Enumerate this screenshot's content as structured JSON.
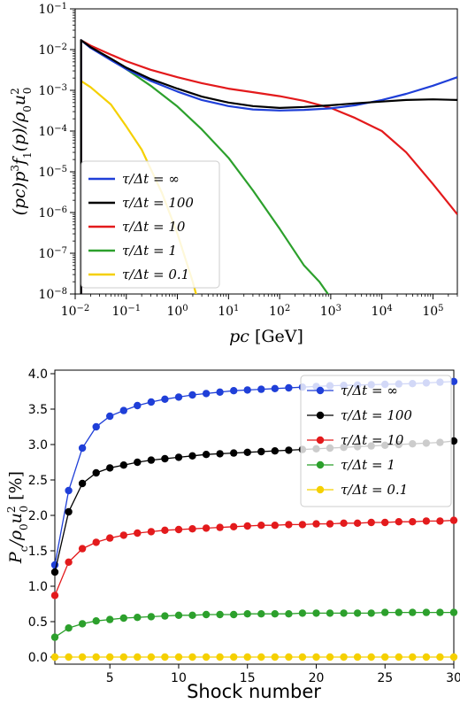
{
  "chart_data": [
    {
      "type": "line",
      "x_scale": "log",
      "y_scale": "log",
      "xlim": [
        0.01,
        300000
      ],
      "ylim": [
        1e-08,
        0.1
      ],
      "xlabel": "pc [GeV]",
      "ylabel": "(pc)p³f₁(p)/ρ₀u₀²",
      "x_ticks": [
        {
          "value": 0.01,
          "base": "10",
          "exp": "−2"
        },
        {
          "value": 0.1,
          "base": "10",
          "exp": "−1"
        },
        {
          "value": 1,
          "base": "10",
          "exp": "0"
        },
        {
          "value": 10,
          "base": "10",
          "exp": "1"
        },
        {
          "value": 100,
          "base": "10",
          "exp": "2"
        },
        {
          "value": 1000,
          "base": "10",
          "exp": "3"
        },
        {
          "value": 10000,
          "base": "10",
          "exp": "4"
        },
        {
          "value": 100000,
          "base": "10",
          "exp": "5"
        }
      ],
      "y_ticks": [
        {
          "value": 0.1,
          "base": "10",
          "exp": "−1"
        },
        {
          "value": 0.01,
          "base": "10",
          "exp": "−2"
        },
        {
          "value": 0.001,
          "base": "10",
          "exp": "−3"
        },
        {
          "value": 0.0001,
          "base": "10",
          "exp": "−4"
        },
        {
          "value": 1e-05,
          "base": "10",
          "exp": "−5"
        },
        {
          "value": 1e-06,
          "base": "10",
          "exp": "−6"
        },
        {
          "value": 1e-07,
          "base": "10",
          "exp": "−7"
        },
        {
          "value": 1e-08,
          "base": "10",
          "exp": "−8"
        }
      ],
      "legend_position": "lower-left",
      "series": [
        {
          "name": "τ/Δt = ∞",
          "color": "#1f3fd8",
          "x": [
            0.013,
            0.02,
            0.05,
            0.1,
            0.3,
            1,
            3,
            10,
            30,
            100,
            300,
            1000,
            3000,
            10000,
            30000,
            100000,
            300000
          ],
          "y": [
            0.017,
            0.011,
            0.0055,
            0.0033,
            0.0017,
            0.00093,
            0.00058,
            0.00041,
            0.00034,
            0.00032,
            0.00033,
            0.00036,
            0.00043,
            0.00058,
            0.00082,
            0.0013,
            0.0021
          ]
        },
        {
          "name": "τ/Δt = 100",
          "color": "#000000",
          "x": [
            0.013,
            0.02,
            0.05,
            0.1,
            0.3,
            1,
            3,
            10,
            30,
            100,
            300,
            1000,
            3000,
            10000,
            30000,
            100000,
            300000
          ],
          "y": [
            0.017,
            0.0115,
            0.006,
            0.0036,
            0.0019,
            0.0011,
            0.0007,
            0.0005,
            0.00041,
            0.00037,
            0.00039,
            0.00043,
            0.00048,
            0.00053,
            0.00058,
            0.0006,
            0.00058
          ]
        },
        {
          "name": "τ/Δt = 10",
          "color": "#e31a1c",
          "x": [
            0.013,
            0.02,
            0.05,
            0.1,
            0.3,
            1,
            3,
            10,
            30,
            100,
            300,
            1000,
            3000,
            10000,
            30000,
            100000,
            300000
          ],
          "y": [
            0.017,
            0.0125,
            0.0075,
            0.0052,
            0.0032,
            0.0021,
            0.0015,
            0.0011,
            0.0009,
            0.00072,
            0.00055,
            0.00037,
            0.00021,
            0.0001,
            3e-05,
            5e-06,
            9e-07
          ]
        },
        {
          "name": "τ/Δt = 1",
          "color": "#2ca02c",
          "x": [
            0.013,
            0.02,
            0.05,
            0.1,
            0.3,
            1,
            3,
            10,
            30,
            100,
            300,
            600,
            1000,
            1200
          ],
          "y": [
            0.017,
            0.0115,
            0.0058,
            0.0033,
            0.0013,
            0.0004,
            0.00011,
            2.2e-05,
            3.5e-06,
            4e-07,
            5e-08,
            2e-08,
            8e-09,
            4e-09
          ]
        },
        {
          "name": "τ/Δt = 0.1",
          "color": "#f5d000",
          "x": [
            0.013,
            0.02,
            0.05,
            0.1,
            0.2,
            0.5,
            1,
            2,
            3
          ],
          "y": [
            0.0017,
            0.0012,
            0.00045,
            0.00013,
            3.5e-05,
            3e-06,
            3e-07,
            2e-08,
            3e-09
          ]
        }
      ]
    },
    {
      "type": "line",
      "xlim": [
        1,
        30
      ],
      "ylim": [
        -0.1,
        4.05
      ],
      "xlabel": "Shock number",
      "ylabel": "P_c/ρ₀u₀² [%]",
      "x_ticks": [
        "5",
        "10",
        "15",
        "20",
        "25",
        "30"
      ],
      "y_ticks": [
        "0.0",
        "0.5",
        "1.0",
        "1.5",
        "2.0",
        "2.5",
        "3.0",
        "3.5",
        "4.0"
      ],
      "legend_position": "upper-right",
      "series": [
        {
          "name": "τ/Δt = ∞",
          "color": "#1f3fd8",
          "x": [
            1,
            2,
            3,
            4,
            5,
            6,
            7,
            8,
            9,
            10,
            11,
            12,
            13,
            14,
            15,
            16,
            17,
            18,
            19,
            20,
            21,
            22,
            23,
            24,
            25,
            26,
            27,
            28,
            29,
            30
          ],
          "y": [
            1.3,
            2.35,
            2.95,
            3.25,
            3.4,
            3.48,
            3.55,
            3.6,
            3.64,
            3.67,
            3.7,
            3.72,
            3.74,
            3.76,
            3.77,
            3.78,
            3.79,
            3.8,
            3.81,
            3.82,
            3.83,
            3.835,
            3.84,
            3.845,
            3.85,
            3.855,
            3.86,
            3.87,
            3.88,
            3.89
          ]
        },
        {
          "name": "τ/Δt = 100",
          "color": "#000000",
          "x": [
            1,
            2,
            3,
            4,
            5,
            6,
            7,
            8,
            9,
            10,
            11,
            12,
            13,
            14,
            15,
            16,
            17,
            18,
            19,
            20,
            21,
            22,
            23,
            24,
            25,
            26,
            27,
            28,
            29,
            30
          ],
          "y": [
            1.2,
            2.05,
            2.45,
            2.6,
            2.67,
            2.71,
            2.75,
            2.78,
            2.8,
            2.82,
            2.84,
            2.86,
            2.87,
            2.88,
            2.89,
            2.9,
            2.91,
            2.92,
            2.93,
            2.94,
            2.95,
            2.96,
            2.97,
            2.98,
            2.99,
            3.0,
            3.01,
            3.02,
            3.03,
            3.05
          ]
        },
        {
          "name": "τ/Δt = 10",
          "color": "#e31a1c",
          "x": [
            1,
            2,
            3,
            4,
            5,
            6,
            7,
            8,
            9,
            10,
            11,
            12,
            13,
            14,
            15,
            16,
            17,
            18,
            19,
            20,
            21,
            22,
            23,
            24,
            25,
            26,
            27,
            28,
            29,
            30
          ],
          "y": [
            0.87,
            1.34,
            1.53,
            1.62,
            1.68,
            1.72,
            1.75,
            1.77,
            1.79,
            1.8,
            1.81,
            1.82,
            1.83,
            1.84,
            1.85,
            1.86,
            1.86,
            1.87,
            1.87,
            1.88,
            1.88,
            1.89,
            1.89,
            1.9,
            1.9,
            1.91,
            1.91,
            1.92,
            1.92,
            1.93
          ]
        },
        {
          "name": "τ/Δt = 1",
          "color": "#2ca02c",
          "x": [
            1,
            2,
            3,
            4,
            5,
            6,
            7,
            8,
            9,
            10,
            11,
            12,
            13,
            14,
            15,
            16,
            17,
            18,
            19,
            20,
            21,
            22,
            23,
            24,
            25,
            26,
            27,
            28,
            29,
            30
          ],
          "y": [
            0.28,
            0.41,
            0.47,
            0.51,
            0.53,
            0.55,
            0.56,
            0.57,
            0.58,
            0.59,
            0.59,
            0.6,
            0.6,
            0.6,
            0.61,
            0.61,
            0.61,
            0.61,
            0.62,
            0.62,
            0.62,
            0.62,
            0.62,
            0.62,
            0.63,
            0.63,
            0.63,
            0.63,
            0.63,
            0.63
          ]
        },
        {
          "name": "τ/Δt = 0.1",
          "color": "#f5d000",
          "x": [
            1,
            2,
            3,
            4,
            5,
            6,
            7,
            8,
            9,
            10,
            11,
            12,
            13,
            14,
            15,
            16,
            17,
            18,
            19,
            20,
            21,
            22,
            23,
            24,
            25,
            26,
            27,
            28,
            29,
            30
          ],
          "y": [
            0.0,
            0.0,
            0.0,
            0.0,
            0.0,
            0.0,
            0.0,
            0.0,
            0.0,
            0.0,
            0.0,
            0.0,
            0.0,
            0.0,
            0.0,
            0.0,
            0.0,
            0.0,
            0.0,
            0.0,
            0.0,
            0.0,
            0.0,
            0.0,
            0.0,
            0.0,
            0.0,
            0.0,
            0.0,
            0.0
          ]
        }
      ]
    }
  ]
}
